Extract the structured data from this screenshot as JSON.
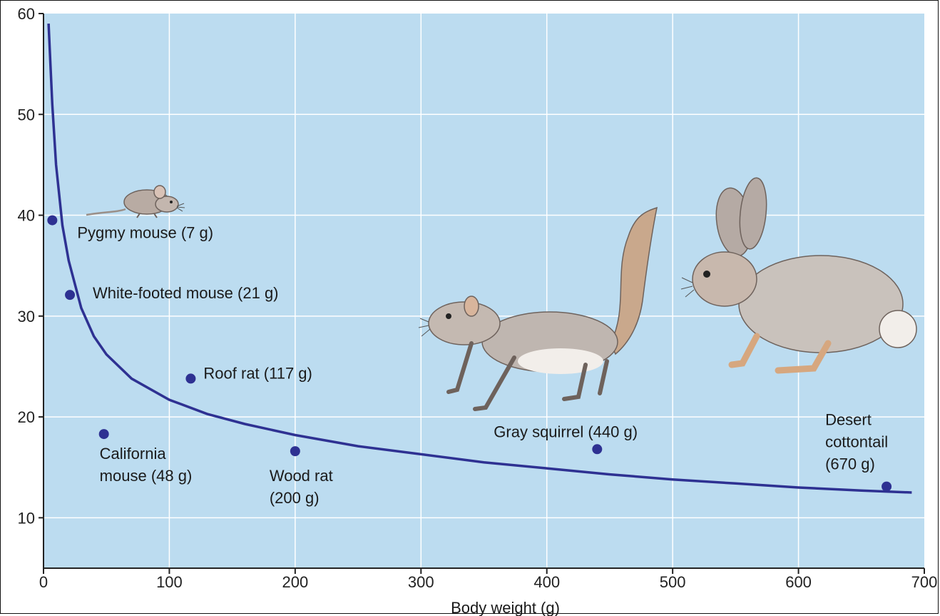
{
  "chart_data": {
    "type": "scatter",
    "title": "",
    "xlabel": "Body weight (g)",
    "ylabel": "",
    "xlim": [
      0,
      700
    ],
    "ylim": [
      5,
      60
    ],
    "x_ticks": [
      "0",
      "100",
      "200",
      "300",
      "400",
      "500",
      "600",
      "700"
    ],
    "y_ticks": [
      "10",
      "20",
      "30",
      "40",
      "50",
      "60"
    ],
    "grid": true,
    "points": [
      {
        "name": "Pygmy mouse",
        "label_lines": [
          "Pygmy mouse (7 g)"
        ],
        "x": 7,
        "y": 39.5
      },
      {
        "name": "White-footed mouse",
        "label_lines": [
          "White-footed mouse (21 g)"
        ],
        "x": 21,
        "y": 32.1
      },
      {
        "name": "California mouse",
        "label_lines": [
          "California",
          "mouse (48 g)"
        ],
        "x": 48,
        "y": 18.3
      },
      {
        "name": "Roof rat",
        "label_lines": [
          "Roof rat (117 g)"
        ],
        "x": 117,
        "y": 23.8
      },
      {
        "name": "Wood rat",
        "label_lines": [
          "Wood rat",
          "(200 g)"
        ],
        "x": 200,
        "y": 16.6
      },
      {
        "name": "Gray squirrel",
        "label_lines": [
          "Gray squirrel (440 g)"
        ],
        "x": 440,
        "y": 16.8
      },
      {
        "name": "Desert cottontail",
        "label_lines": [
          "Desert",
          "cottontail",
          "(670 g)"
        ],
        "x": 670,
        "y": 13.1
      }
    ],
    "fit_curve": {
      "x": [
        4,
        7,
        10,
        15,
        20,
        30,
        40,
        50,
        70,
        100,
        130,
        160,
        200,
        250,
        300,
        350,
        400,
        450,
        500,
        550,
        600,
        650,
        690
      ],
      "y": [
        59,
        51,
        45,
        39,
        35.5,
        30.8,
        28,
        26.2,
        23.8,
        21.7,
        20.3,
        19.3,
        18.2,
        17.1,
        16.3,
        15.5,
        14.9,
        14.3,
        13.8,
        13.4,
        13.0,
        12.7,
        12.5
      ]
    },
    "colors": {
      "plot_background": "#bcdcf0",
      "grid": "#ffffff",
      "series": "#2e3192"
    }
  }
}
